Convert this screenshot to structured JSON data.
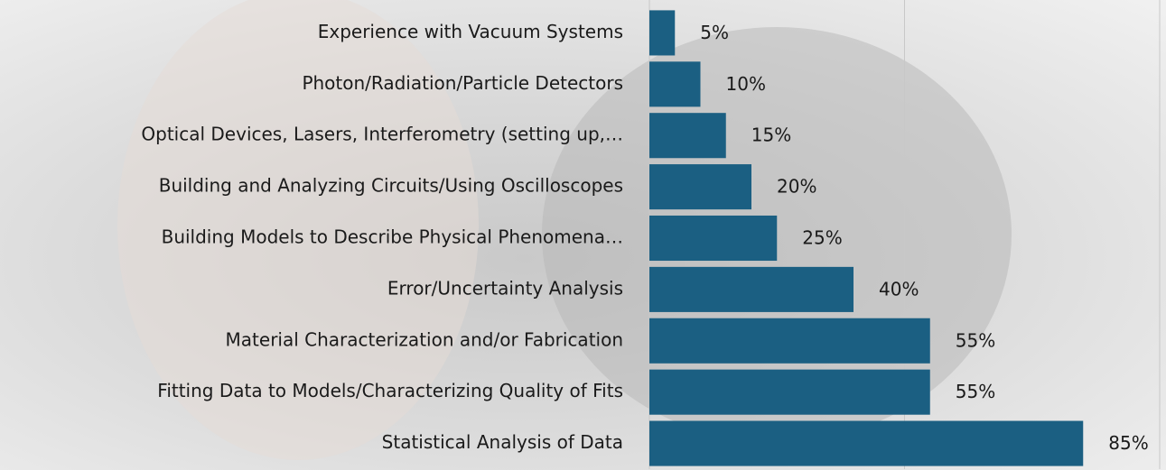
{
  "chart_data": {
    "type": "bar",
    "orientation": "horizontal",
    "categories": [
      "Experience with Vacuum Systems",
      "Photon/Radiation/Particle Detectors",
      "Optical Devices, Lasers, Interferometry (setting up,…",
      "Building and Analyzing Circuits/Using Oscilloscopes",
      "Building Models to Describe Physical Phenomena…",
      "Error/Uncertainty Analysis",
      "Material Characterization and/or Fabrication",
      "Fitting Data to Models/Characterizing Quality of Fits",
      "Statistical Analysis of Data"
    ],
    "values": [
      5,
      10,
      15,
      20,
      25,
      40,
      55,
      55,
      85
    ],
    "value_labels": [
      "5%",
      "10%",
      "15%",
      "20%",
      "25%",
      "40%",
      "55%",
      "55%",
      "85%"
    ],
    "color": "#1b5f82",
    "xlim": [
      0,
      100
    ],
    "xticks": [
      0,
      50,
      100
    ],
    "grid": true
  }
}
